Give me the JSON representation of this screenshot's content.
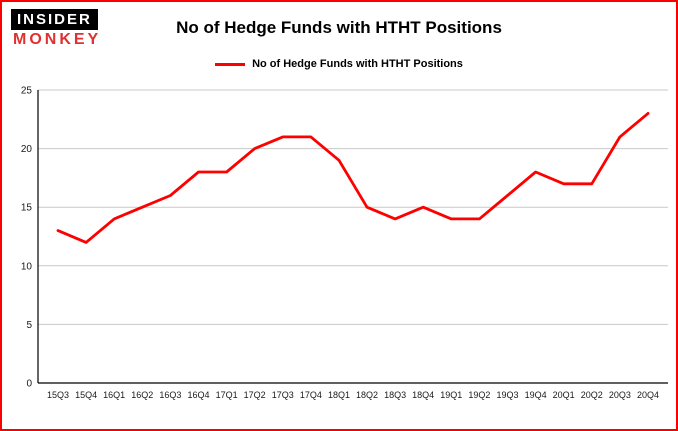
{
  "logo": {
    "line1": "INSIDER",
    "line2": "MONKEY"
  },
  "title": "No of Hedge Funds with HTHT Positions",
  "legend": {
    "label": "No of Hedge Funds with HTHT Positions",
    "color": "#ff0000"
  },
  "chart_data": {
    "type": "line",
    "title": "No of Hedge Funds with HTHT Positions",
    "categories": [
      "15Q3",
      "15Q4",
      "16Q1",
      "16Q2",
      "16Q3",
      "16Q4",
      "17Q1",
      "17Q2",
      "17Q3",
      "17Q4",
      "18Q1",
      "18Q2",
      "18Q3",
      "18Q4",
      "19Q1",
      "19Q2",
      "19Q3",
      "19Q4",
      "20Q1",
      "20Q2",
      "20Q3",
      "20Q4"
    ],
    "values": [
      13,
      12,
      14,
      15,
      16,
      18,
      18,
      20,
      21,
      21,
      19,
      15,
      14,
      15,
      14,
      14,
      16,
      18,
      17,
      17,
      21,
      23
    ],
    "xlabel": "",
    "ylabel": "",
    "ylim": [
      0,
      25
    ],
    "yticks": [
      0,
      5,
      10,
      15,
      20,
      25
    ],
    "grid": true,
    "legend_position": "top",
    "line_color": "#ff0000",
    "grid_color": "#c9c9c9",
    "axis_color": "#000000",
    "tick_label_color": "#1a1a1a",
    "border_color": "#fb0000"
  }
}
